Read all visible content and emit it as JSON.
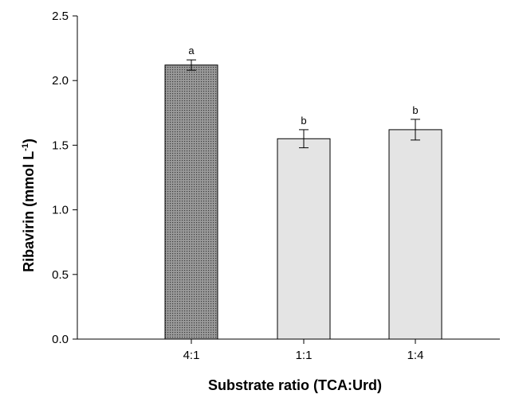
{
  "chart_data": {
    "type": "bar",
    "xlabel": "Substrate ratio (TCA:Urd)",
    "ylabel": "Ribavirin (mmol L",
    "ylabel_superscript": "-1",
    "ylabel_suffix": ")",
    "categories": [
      "4:1",
      "1:1",
      "1:4"
    ],
    "values": [
      2.12,
      1.55,
      1.62
    ],
    "errors": [
      0.04,
      0.07,
      0.08
    ],
    "significance": [
      "a",
      "b",
      "b"
    ],
    "bar_styles": [
      "dotted-dark",
      "plain-light",
      "plain-light"
    ],
    "ylim": [
      0,
      2.5
    ],
    "yticks": [
      0.0,
      0.5,
      1.0,
      1.5,
      2.0,
      2.5
    ],
    "ytick_labels": [
      "0.0",
      "0.5",
      "1.0",
      "1.5",
      "2.0",
      "2.5"
    ],
    "grid": false,
    "colors": {
      "dotted_fill": "#9a9a9a",
      "dotted_dots": "#3a3a3a",
      "light_fill": "#e4e4e4",
      "stroke": "#000000"
    }
  }
}
